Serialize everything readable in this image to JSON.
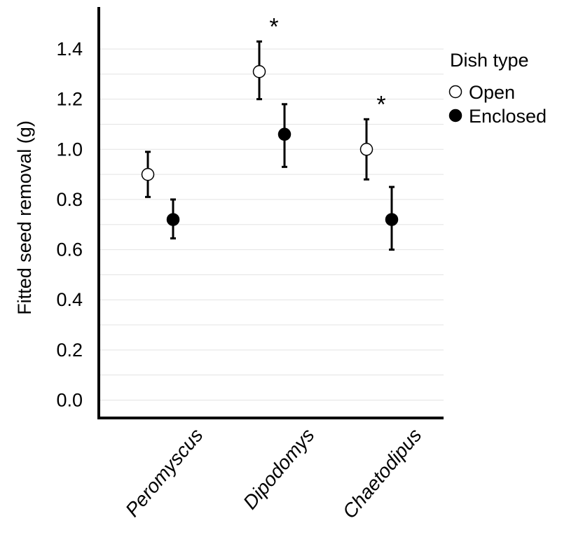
{
  "chart_data": {
    "type": "scatter",
    "title": "",
    "xlabel": "",
    "ylabel": "Fitted seed removal (g)",
    "ylim": [
      -0.05,
      1.55
    ],
    "yticks": [
      "0.0",
      "0.2",
      "0.4",
      "0.6",
      "0.8",
      "1.0",
      "1.2",
      "1.4"
    ],
    "grid": "horizontal",
    "categories": [
      "Peromyscus",
      "Dipodomys",
      "Chaetodipus"
    ],
    "legend": {
      "title": "Dish type",
      "placement": "right"
    },
    "series": [
      {
        "name": "Open",
        "fill": "#ffffff",
        "values": [
          0.9,
          1.31,
          1.0
        ],
        "lower": [
          0.81,
          1.2,
          0.88
        ],
        "upper": [
          0.99,
          1.43,
          1.12
        ]
      },
      {
        "name": "Enclosed",
        "fill": "#000000",
        "values": [
          0.72,
          1.06,
          0.72
        ],
        "lower": [
          0.645,
          0.93,
          0.6
        ],
        "upper": [
          0.8,
          1.18,
          0.85
        ]
      }
    ],
    "annotations": [
      {
        "category": "Dipodomys",
        "text": "*"
      },
      {
        "category": "Chaetodipus",
        "text": "*"
      }
    ]
  },
  "colors": {
    "grid": "#e3e3e3",
    "axis": "#000000"
  }
}
